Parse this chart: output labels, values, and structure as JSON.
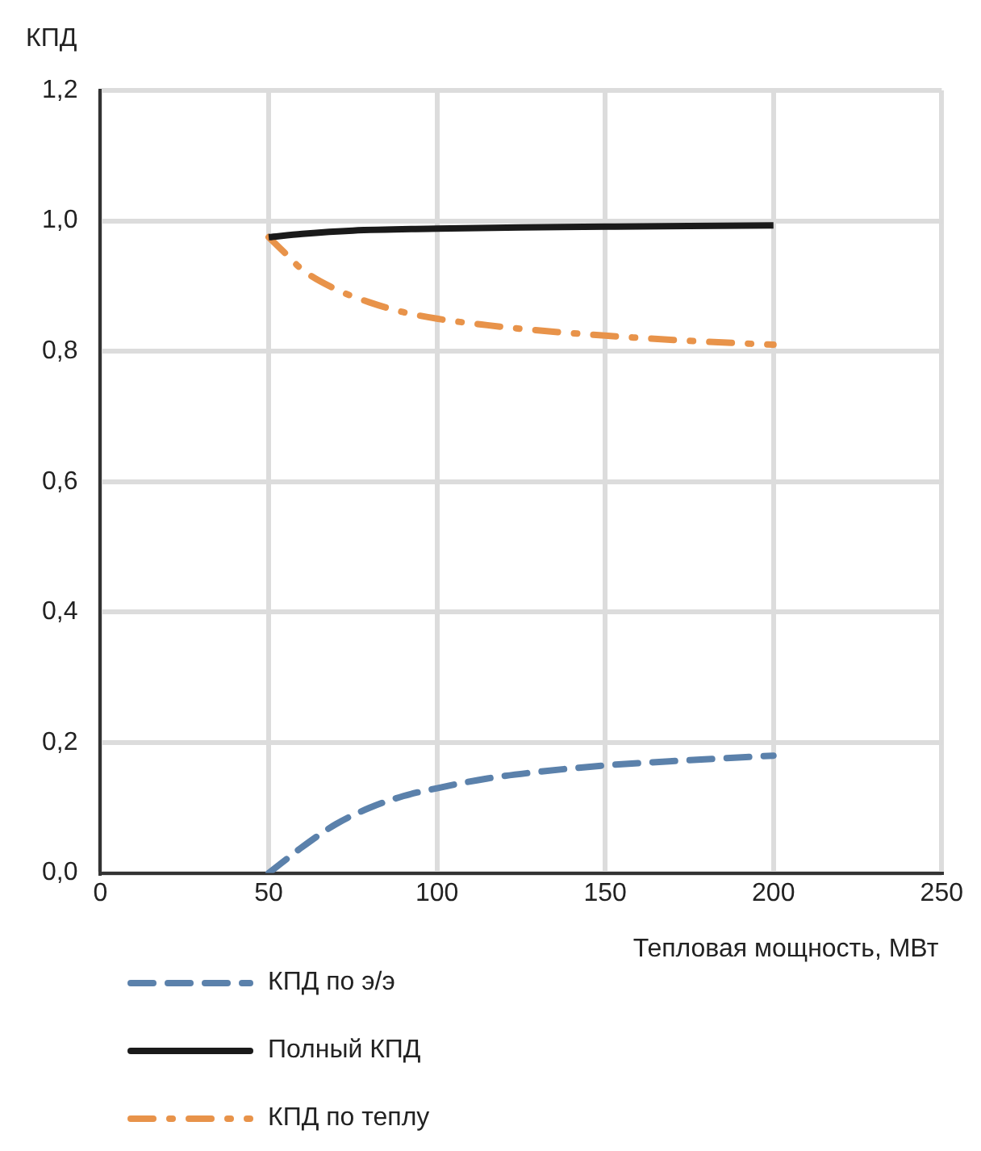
{
  "chart_data": {
    "type": "line",
    "xlabel": "Тепловая мощность, МВт",
    "ylabel": "КПД",
    "xlim": [
      0,
      250
    ],
    "xticks": [
      0,
      50,
      100,
      150,
      200,
      250
    ],
    "ylim": [
      0,
      1.2
    ],
    "yticks": [
      {
        "value": 0,
        "label": "0,0"
      },
      {
        "value": 0.2,
        "label": "0,2"
      },
      {
        "value": 0.4,
        "label": "0,4"
      },
      {
        "value": 0.6,
        "label": "0,6"
      },
      {
        "value": 0.8,
        "label": "0,8"
      },
      {
        "value": 1,
        "label": "1,0"
      },
      {
        "value": 1.2,
        "label": "1,2"
      }
    ],
    "grid": true,
    "legend": "bottom",
    "marker": "none",
    "series": [
      {
        "name": "КПД по э/э",
        "color": "#5b81ab",
        "line_style": "dashed",
        "x": [
          50,
          55,
          60,
          70,
          80,
          90,
          100,
          115,
          130,
          150,
          175,
          200
        ],
        "values": [
          0,
          0.02,
          0.04,
          0.075,
          0.1,
          0.118,
          0.13,
          0.145,
          0.155,
          0.165,
          0.173,
          0.18
        ]
      },
      {
        "name": "Полный КПД",
        "color": "#1a1a1a",
        "line_style": "solid",
        "x": [
          50,
          60,
          75,
          100,
          125,
          150,
          175,
          200
        ],
        "values": [
          0.975,
          0.98,
          0.985,
          0.988,
          0.99,
          0.991,
          0.992,
          0.993
        ]
      },
      {
        "name": "КПД по теплу",
        "color": "#e8934a",
        "line_style": "dashdot",
        "x": [
          50,
          55,
          60,
          70,
          80,
          90,
          100,
          115,
          130,
          150,
          175,
          200
        ],
        "values": [
          0.975,
          0.95,
          0.925,
          0.895,
          0.875,
          0.86,
          0.85,
          0.84,
          0.832,
          0.824,
          0.816,
          0.81
        ]
      }
    ]
  }
}
